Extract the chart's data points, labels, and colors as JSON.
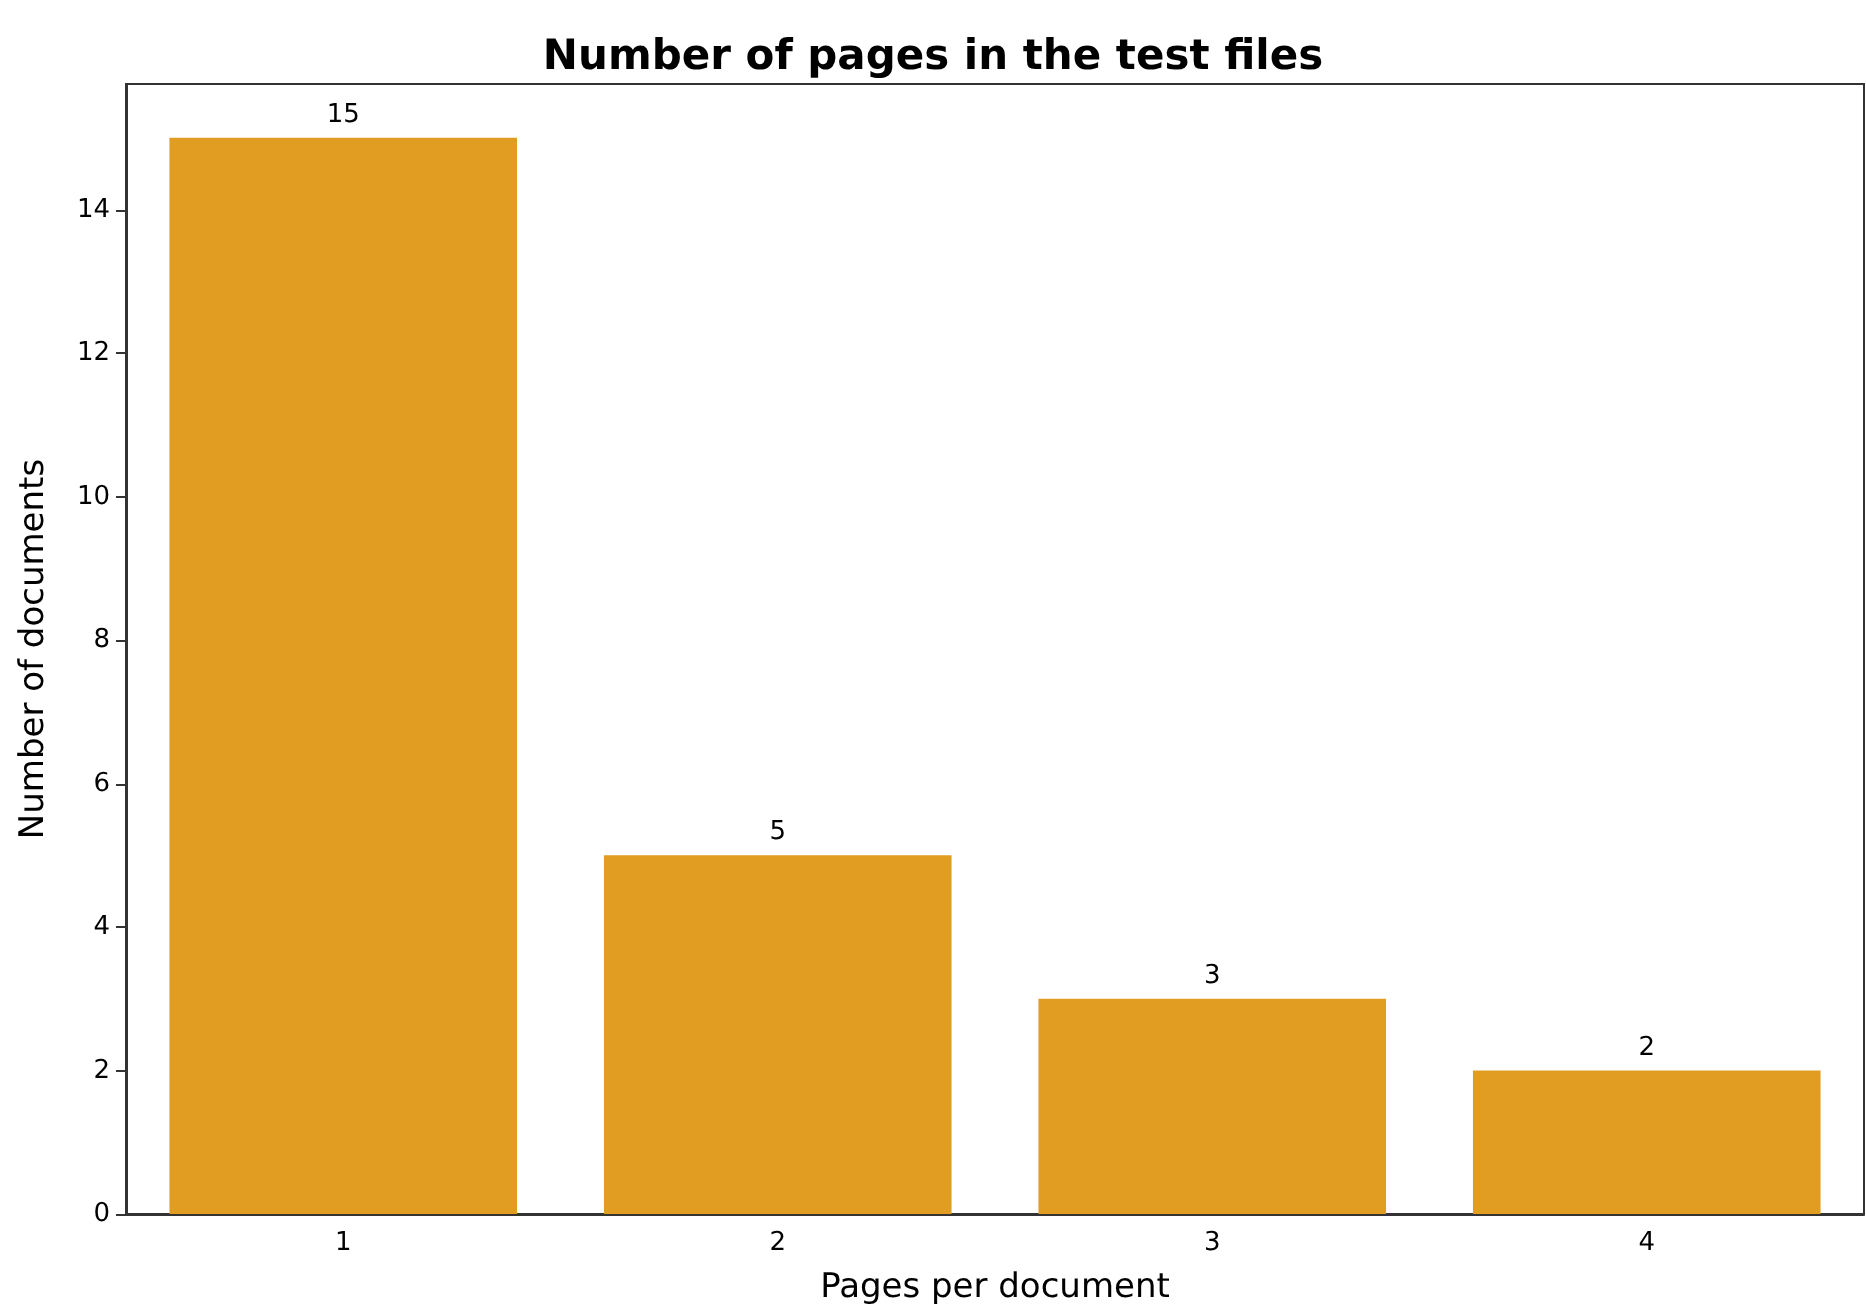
{
  "chart_data": {
    "type": "bar",
    "title": "Number of pages in the test files",
    "xlabel": "Pages per document",
    "ylabel": "Number of documents",
    "categories": [
      "1",
      "2",
      "3",
      "4"
    ],
    "values": [
      15,
      5,
      3,
      2
    ],
    "color": "#e09d22",
    "ylim": [
      0,
      15.75
    ],
    "yticks": [
      0,
      2,
      4,
      6,
      8,
      10,
      12,
      14
    ],
    "grid": false,
    "data_labels": true
  }
}
